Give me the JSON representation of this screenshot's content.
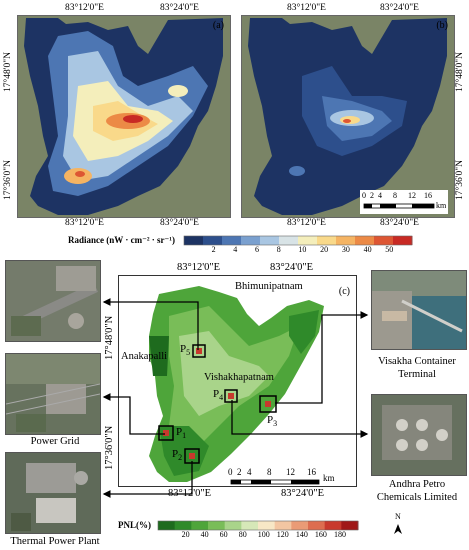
{
  "map_a": {
    "letter": "(a)",
    "top_ticks": [
      "83°12'0\"E",
      "83°24'0\"E"
    ],
    "bottom_ticks": [
      "83°12'0\"E",
      "83°24'0\"E"
    ],
    "left_ticks": [
      "17°48'0\"N",
      "17°36'0\"N"
    ]
  },
  "map_b": {
    "letter": "(b)",
    "top_ticks": [
      "83°12'0\"E",
      "83°24'0\"E"
    ],
    "bottom_ticks": [
      "83°12'0\"E",
      "83°24'0\"E"
    ],
    "right_ticks": [
      "17°48'0\"N",
      "17°36'0\"N"
    ],
    "scalebar": {
      "labels": [
        "0",
        "2",
        "4",
        "8",
        "12",
        "16"
      ],
      "unit": "km"
    }
  },
  "radiance_legend": {
    "title": "Radiance (nW · cm⁻² · sr⁻¹)",
    "ticks": [
      "2",
      "4",
      "6",
      "8",
      "10",
      "20",
      "30",
      "40",
      "50"
    ],
    "colors": [
      "#1d3363",
      "#2d4f8c",
      "#4d76b3",
      "#7aa0cf",
      "#a9c6e2",
      "#d8e3e6",
      "#f4eebb",
      "#f9d98a",
      "#f5b463",
      "#ec8a46",
      "#dd5633",
      "#c82a24"
    ]
  },
  "map_c": {
    "letter": "(c)",
    "top_ticks": [
      "83°12'0\"E",
      "83°24'0\"E"
    ],
    "bottom_ticks": [
      "83°12'0\"E",
      "83°24'0\"E"
    ],
    "left_ticks": [
      "17°48'0\"N",
      "17°36'0\"N"
    ],
    "places": {
      "bhimunipatnam": "Bhimunipatnam",
      "anakapalli": "Anakapalli",
      "vishakhapatnam": "Vishakhapatnam"
    },
    "points": [
      {
        "id": "P",
        "sub": "1"
      },
      {
        "id": "P",
        "sub": "2"
      },
      {
        "id": "P",
        "sub": "3"
      },
      {
        "id": "P",
        "sub": "4"
      },
      {
        "id": "P",
        "sub": "5"
      }
    ],
    "scalebar": {
      "labels": [
        "0",
        "2",
        "4",
        "8",
        "12",
        "16"
      ],
      "unit": "km"
    }
  },
  "pnl_legend": {
    "title": "PNL(%)",
    "ticks": [
      "20",
      "40",
      "60",
      "80",
      "100",
      "120",
      "140",
      "160",
      "180"
    ],
    "colors": [
      "#1e6b1e",
      "#2f8a2a",
      "#4ea53a",
      "#79bd58",
      "#a9d48a",
      "#d6e8b8",
      "#f7e7c6",
      "#f3c6a2",
      "#ea9b76",
      "#dd6d50",
      "#c8392d",
      "#a01818"
    ]
  },
  "photos": {
    "power_grid": "Power Grid",
    "thermal": "Thermal Power Plant",
    "visakha_l1": "Visakha Container",
    "visakha_l2": "Terminal",
    "andhra_l1": "Andhra Petro",
    "andhra_l2": "Chemicals Limited"
  },
  "north_arrow": "N"
}
